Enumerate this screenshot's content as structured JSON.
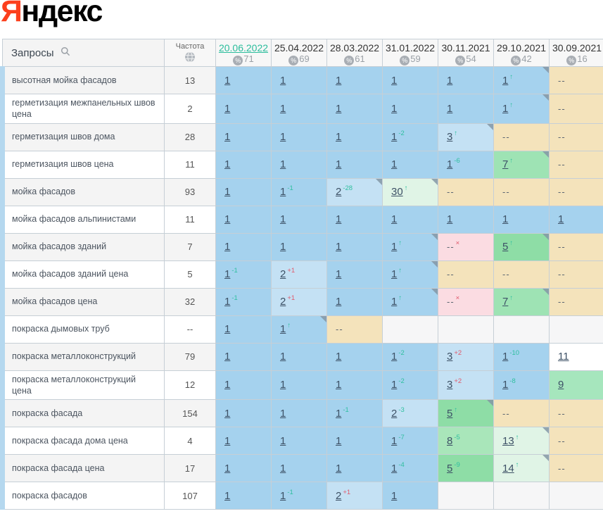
{
  "logo": {
    "first_letter": "Я",
    "rest": "ндекс"
  },
  "header": {
    "queries_label": "Запросы",
    "frequency_label": "Частота",
    "columns": [
      {
        "date": "20.06.2022",
        "percent": "71",
        "active": true
      },
      {
        "date": "25.04.2022",
        "percent": "69",
        "active": false
      },
      {
        "date": "28.03.2022",
        "percent": "61",
        "active": false
      },
      {
        "date": "31.01.2022",
        "percent": "59",
        "active": false
      },
      {
        "date": "30.11.2021",
        "percent": "54",
        "active": false
      },
      {
        "date": "29.10.2021",
        "percent": "42",
        "active": false
      },
      {
        "date": "30.09.2021",
        "percent": "16",
        "active": false
      }
    ]
  },
  "colors": {
    "logo_red": "#fc3f1d",
    "accent_teal": "#2fbf9f",
    "decline_red": "#e0596b",
    "position_blue": "#a5d2ee",
    "position_blue_light": "#c4e1f4",
    "position_green": "#8edda6",
    "position_green_pale": "#e0f4e6",
    "not_found_tan": "#f4e3bb",
    "lost_pink": "#fbdce2"
  },
  "rows": [
    {
      "query": "высотная мойка фасадов",
      "frequency": "13",
      "cells": [
        {
          "value": "1",
          "bg": "blue"
        },
        {
          "value": "1",
          "bg": "blue"
        },
        {
          "value": "1",
          "bg": "blue"
        },
        {
          "value": "1",
          "bg": "blue"
        },
        {
          "value": "1",
          "bg": "blue"
        },
        {
          "value": "1",
          "sup": "↑",
          "supColor": "up",
          "bg": "blue",
          "corner": true
        },
        {
          "value": "--",
          "bg": "tan"
        }
      ]
    },
    {
      "query": "герметизация межпанельных швов цена",
      "frequency": "2",
      "cells": [
        {
          "value": "1",
          "bg": "blue"
        },
        {
          "value": "1",
          "bg": "blue"
        },
        {
          "value": "1",
          "bg": "blue"
        },
        {
          "value": "1",
          "bg": "blue"
        },
        {
          "value": "1",
          "bg": "blue"
        },
        {
          "value": "1",
          "sup": "↑",
          "supColor": "up",
          "bg": "blue",
          "corner": true
        },
        {
          "value": "--",
          "bg": "tan"
        }
      ]
    },
    {
      "query": "герметизация швов дома",
      "frequency": "28",
      "cells": [
        {
          "value": "1",
          "bg": "blue"
        },
        {
          "value": "1",
          "bg": "blue"
        },
        {
          "value": "1",
          "bg": "blue"
        },
        {
          "value": "1",
          "sup": "-2",
          "supColor": "up",
          "bg": "blue"
        },
        {
          "value": "3",
          "sup": "↑",
          "supColor": "up",
          "bg": "blue2",
          "corner": true
        },
        {
          "value": "--",
          "bg": "tan"
        },
        {
          "value": "--",
          "bg": "tan"
        }
      ]
    },
    {
      "query": "герметизация швов цена",
      "frequency": "11",
      "cells": [
        {
          "value": "1",
          "bg": "blue"
        },
        {
          "value": "1",
          "bg": "blue"
        },
        {
          "value": "1",
          "bg": "blue"
        },
        {
          "value": "1",
          "bg": "blue"
        },
        {
          "value": "1",
          "sup": "-6",
          "supColor": "up",
          "bg": "blue"
        },
        {
          "value": "7",
          "sup": "↑",
          "supColor": "up",
          "bg": "g7",
          "corner": true
        },
        {
          "value": "--",
          "bg": "tan"
        }
      ]
    },
    {
      "query": "мойка фасадов",
      "frequency": "93",
      "cells": [
        {
          "value": "1",
          "bg": "blue"
        },
        {
          "value": "1",
          "sup": "-1",
          "supColor": "up",
          "bg": "blue"
        },
        {
          "value": "2",
          "sup": "-28",
          "supColor": "up",
          "bg": "blue2",
          "corner": true
        },
        {
          "value": "30",
          "sup": "↑",
          "supColor": "up",
          "bg": "pale",
          "corner": true
        },
        {
          "value": "--",
          "bg": "tan"
        },
        {
          "value": "--",
          "bg": "tan"
        },
        {
          "value": "--",
          "bg": "tan"
        }
      ]
    },
    {
      "query": "мойка фасадов альпинистами",
      "frequency": "11",
      "cells": [
        {
          "value": "1",
          "bg": "blue"
        },
        {
          "value": "1",
          "bg": "blue"
        },
        {
          "value": "1",
          "bg": "blue"
        },
        {
          "value": "1",
          "bg": "blue"
        },
        {
          "value": "1",
          "bg": "blue"
        },
        {
          "value": "1",
          "bg": "blue"
        },
        {
          "value": "1",
          "bg": "blue"
        }
      ]
    },
    {
      "query": "мойка фасадов зданий",
      "frequency": "7",
      "cells": [
        {
          "value": "1",
          "bg": "blue"
        },
        {
          "value": "1",
          "bg": "blue"
        },
        {
          "value": "1",
          "bg": "blue"
        },
        {
          "value": "1",
          "sup": "↑",
          "supColor": "up",
          "bg": "blue",
          "corner": true
        },
        {
          "value": "--",
          "sup": "×",
          "supColor": "down",
          "bg": "pink"
        },
        {
          "value": "5",
          "sup": "↑",
          "supColor": "up",
          "bg": "g5",
          "corner": true
        },
        {
          "value": "--",
          "bg": "tan"
        }
      ]
    },
    {
      "query": "мойка фасадов зданий цена",
      "frequency": "5",
      "cells": [
        {
          "value": "1",
          "sup": "-1",
          "supColor": "up",
          "bg": "blue"
        },
        {
          "value": "2",
          "sup": "+1",
          "supColor": "down",
          "bg": "blue2"
        },
        {
          "value": "1",
          "bg": "blue"
        },
        {
          "value": "1",
          "sup": "↑",
          "supColor": "up",
          "bg": "blue",
          "corner": true
        },
        {
          "value": "--",
          "bg": "tan"
        },
        {
          "value": "--",
          "bg": "tan"
        },
        {
          "value": "--",
          "bg": "tan"
        }
      ]
    },
    {
      "query": "мойка фасадов цена",
      "frequency": "32",
      "cells": [
        {
          "value": "1",
          "sup": "-1",
          "supColor": "up",
          "bg": "blue"
        },
        {
          "value": "2",
          "sup": "+1",
          "supColor": "down",
          "bg": "blue2"
        },
        {
          "value": "1",
          "bg": "blue"
        },
        {
          "value": "1",
          "sup": "↑",
          "supColor": "up",
          "bg": "blue",
          "corner": true
        },
        {
          "value": "--",
          "sup": "×",
          "supColor": "down",
          "bg": "pink"
        },
        {
          "value": "7",
          "sup": "↑",
          "supColor": "up",
          "bg": "g7",
          "corner": true
        },
        {
          "value": "--",
          "bg": "tan"
        }
      ]
    },
    {
      "query": "покраска дымовых труб",
      "frequency": "--",
      "cells": [
        {
          "value": "1",
          "bg": "blue"
        },
        {
          "value": "1",
          "sup": "↑",
          "supColor": "up",
          "bg": "blue",
          "corner": true
        },
        {
          "value": "--",
          "bg": "tan"
        },
        {
          "bg": "empty"
        },
        {
          "bg": "empty"
        },
        {
          "bg": "empty"
        },
        {
          "bg": "empty"
        }
      ]
    },
    {
      "query": "покраска металлоконструкций",
      "frequency": "79",
      "cells": [
        {
          "value": "1",
          "bg": "blue"
        },
        {
          "value": "1",
          "bg": "blue"
        },
        {
          "value": "1",
          "bg": "blue"
        },
        {
          "value": "1",
          "sup": "-2",
          "supColor": "up",
          "bg": "blue"
        },
        {
          "value": "3",
          "sup": "+2",
          "supColor": "down",
          "bg": "blue2"
        },
        {
          "value": "1",
          "sup": "-10",
          "supColor": "up",
          "bg": "blue"
        },
        {
          "value": "11",
          "bg": "white"
        }
      ]
    },
    {
      "query": "покраска металлоконструкций цена",
      "frequency": "12",
      "cells": [
        {
          "value": "1",
          "bg": "blue"
        },
        {
          "value": "1",
          "bg": "blue"
        },
        {
          "value": "1",
          "bg": "blue"
        },
        {
          "value": "1",
          "sup": "-2",
          "supColor": "up",
          "bg": "blue"
        },
        {
          "value": "3",
          "sup": "+2",
          "supColor": "down",
          "bg": "blue2"
        },
        {
          "value": "1",
          "sup": "-8",
          "supColor": "up",
          "bg": "blue"
        },
        {
          "value": "9",
          "bg": "g9"
        }
      ]
    },
    {
      "query": "покраска фасада",
      "frequency": "154",
      "cells": [
        {
          "value": "1",
          "bg": "blue"
        },
        {
          "value": "1",
          "bg": "blue"
        },
        {
          "value": "1",
          "sup": "-1",
          "supColor": "up",
          "bg": "blue"
        },
        {
          "value": "2",
          "sup": "-3",
          "supColor": "up",
          "bg": "blue2"
        },
        {
          "value": "5",
          "sup": "↑",
          "supColor": "up",
          "bg": "g5",
          "corner": true
        },
        {
          "value": "--",
          "bg": "tan"
        },
        {
          "value": "--",
          "bg": "tan"
        }
      ]
    },
    {
      "query": "покраска фасада дома цена",
      "frequency": "4",
      "cells": [
        {
          "value": "1",
          "bg": "blue"
        },
        {
          "value": "1",
          "bg": "blue"
        },
        {
          "value": "1",
          "bg": "blue"
        },
        {
          "value": "1",
          "sup": "-7",
          "supColor": "up",
          "bg": "blue"
        },
        {
          "value": "8",
          "sup": "-5",
          "supColor": "up",
          "bg": "g8"
        },
        {
          "value": "13",
          "sup": "↑",
          "supColor": "up",
          "bg": "pale",
          "corner": true
        },
        {
          "value": "--",
          "bg": "tan"
        }
      ]
    },
    {
      "query": "покраска фасада цена",
      "frequency": "17",
      "cells": [
        {
          "value": "1",
          "bg": "blue"
        },
        {
          "value": "1",
          "bg": "blue"
        },
        {
          "value": "1",
          "bg": "blue"
        },
        {
          "value": "1",
          "sup": "-4",
          "supColor": "up",
          "bg": "blue"
        },
        {
          "value": "5",
          "sup": "-9",
          "supColor": "up",
          "bg": "g5"
        },
        {
          "value": "14",
          "sup": "↑",
          "supColor": "up",
          "bg": "pale",
          "corner": true
        },
        {
          "value": "--",
          "bg": "tan"
        }
      ]
    },
    {
      "query": "покраска фасадов",
      "frequency": "107",
      "cells": [
        {
          "value": "1",
          "bg": "blue"
        },
        {
          "value": "1",
          "sup": "-1",
          "supColor": "up",
          "bg": "blue"
        },
        {
          "value": "2",
          "sup": "+1",
          "supColor": "down",
          "bg": "blue2"
        },
        {
          "value": "1",
          "bg": "blue"
        },
        {
          "bg": "empty"
        },
        {
          "bg": "empty"
        },
        {
          "bg": "empty"
        }
      ]
    }
  ]
}
